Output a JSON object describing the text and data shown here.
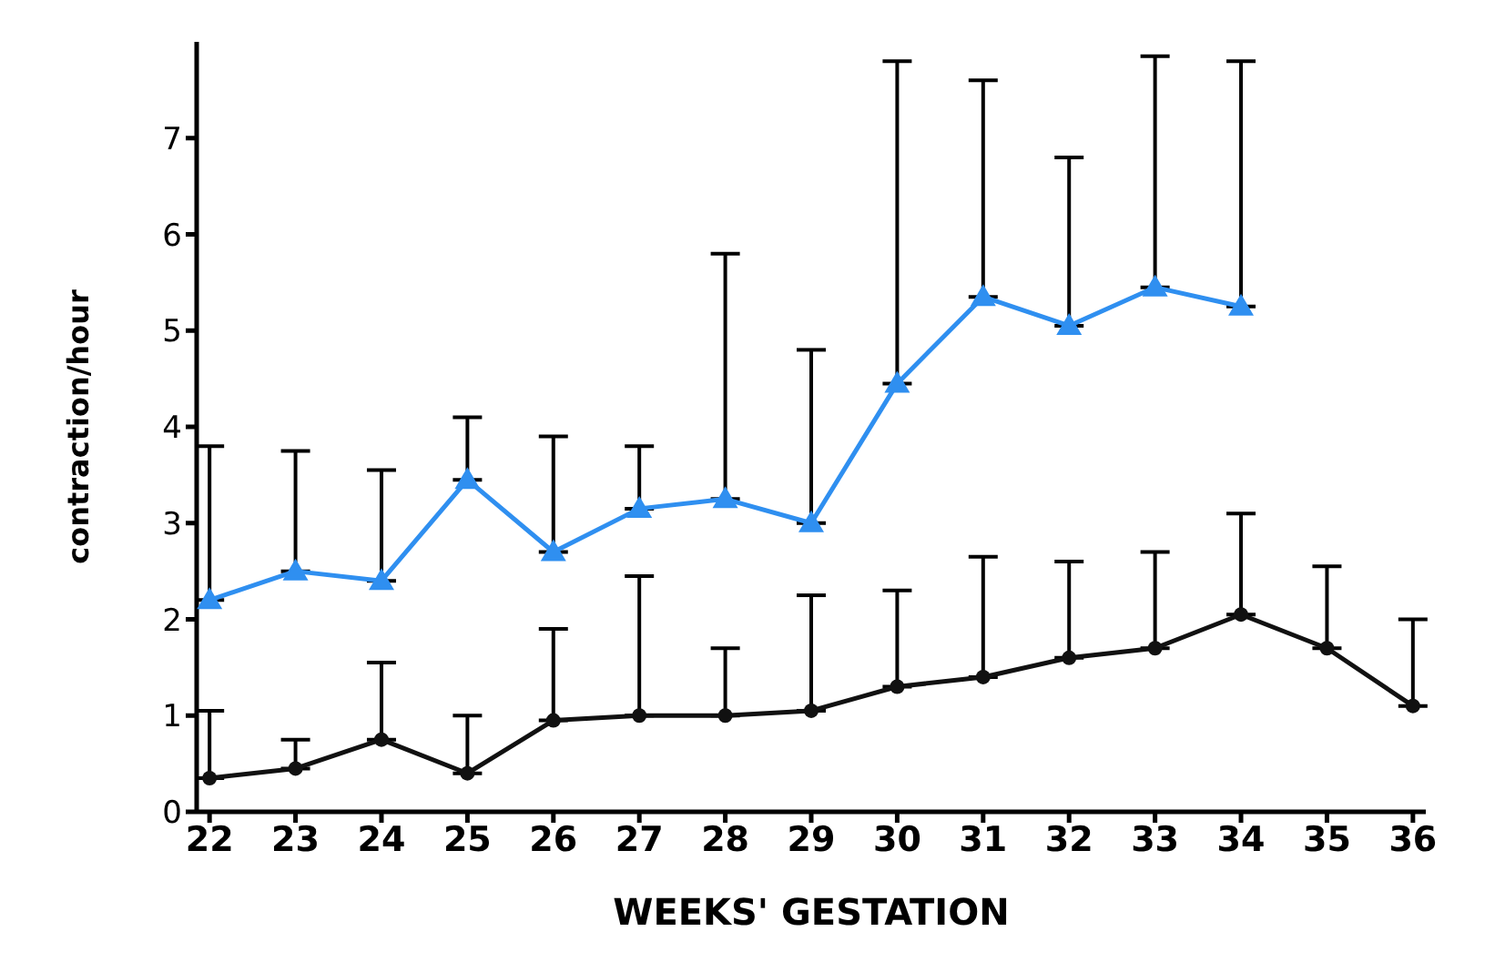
{
  "chart_data": {
    "type": "line",
    "xlabel": "WEEKS'  GESTATION",
    "ylabel": "contraction/hour",
    "categories": [
      "22",
      "23",
      "24",
      "25",
      "26",
      "27",
      "28",
      "29",
      "30",
      "31",
      "32",
      "33",
      "34",
      "35",
      "36"
    ],
    "ylim": [
      0,
      8
    ],
    "yticks": [
      0,
      1,
      2,
      3,
      4,
      5,
      6,
      7
    ],
    "grid": false,
    "legend": false,
    "series": [
      {
        "color": "#2f8ff0",
        "marker": "triangle",
        "values": [
          2.2,
          2.5,
          2.4,
          3.45,
          2.7,
          3.15,
          3.25,
          3.0,
          4.45,
          5.35,
          5.05,
          5.45,
          5.25,
          null,
          null
        ],
        "errors": [
          [
            2.2,
            3.8
          ],
          [
            2.5,
            3.75
          ],
          [
            2.4,
            3.55
          ],
          [
            3.45,
            4.1
          ],
          [
            2.7,
            3.9
          ],
          [
            3.15,
            3.8
          ],
          [
            3.25,
            5.8
          ],
          [
            3.0,
            4.8
          ],
          [
            4.45,
            7.8
          ],
          [
            5.35,
            7.6
          ],
          [
            5.05,
            6.8
          ],
          [
            5.45,
            7.85
          ],
          [
            5.25,
            7.8
          ],
          null,
          null
        ]
      },
      {
        "color": "#111111",
        "marker": "circle",
        "values": [
          0.35,
          0.45,
          0.75,
          0.4,
          0.95,
          1.0,
          1.0,
          1.05,
          1.3,
          1.4,
          1.6,
          1.7,
          2.05,
          1.7,
          1.1
        ],
        "errors": [
          [
            0.35,
            1.05
          ],
          [
            0.45,
            0.75
          ],
          [
            0.75,
            1.55
          ],
          [
            0.4,
            1.0
          ],
          [
            0.95,
            1.9
          ],
          [
            1.0,
            2.45
          ],
          [
            1.0,
            1.7
          ],
          [
            1.05,
            2.25
          ],
          [
            1.3,
            2.3
          ],
          [
            1.4,
            2.65
          ],
          [
            1.6,
            2.6
          ],
          [
            1.7,
            2.7
          ],
          [
            2.05,
            3.1
          ],
          [
            1.7,
            2.55
          ],
          [
            1.1,
            2.0
          ]
        ]
      }
    ]
  }
}
